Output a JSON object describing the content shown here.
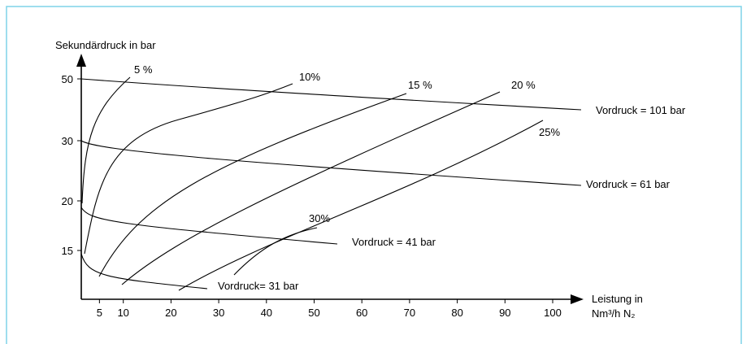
{
  "y_axis": {
    "label": "Sekundärdruck in bar",
    "ticks": [
      50,
      30,
      20,
      15
    ]
  },
  "x_axis": {
    "label_lines": [
      "Leistung in",
      "Nm³/h N₂"
    ],
    "ticks": [
      5,
      10,
      20,
      30,
      40,
      50,
      60,
      70,
      80,
      90,
      100
    ]
  },
  "pressure_curves": [
    "Vordruck = 101 bar",
    "Vordruck = 61 bar",
    "Vordruck = 41 bar",
    "Vordruck= 31 bar"
  ],
  "percent_curves": [
    "5 %",
    "10%",
    "15 %",
    "20 %",
    "25%",
    "30%"
  ]
}
